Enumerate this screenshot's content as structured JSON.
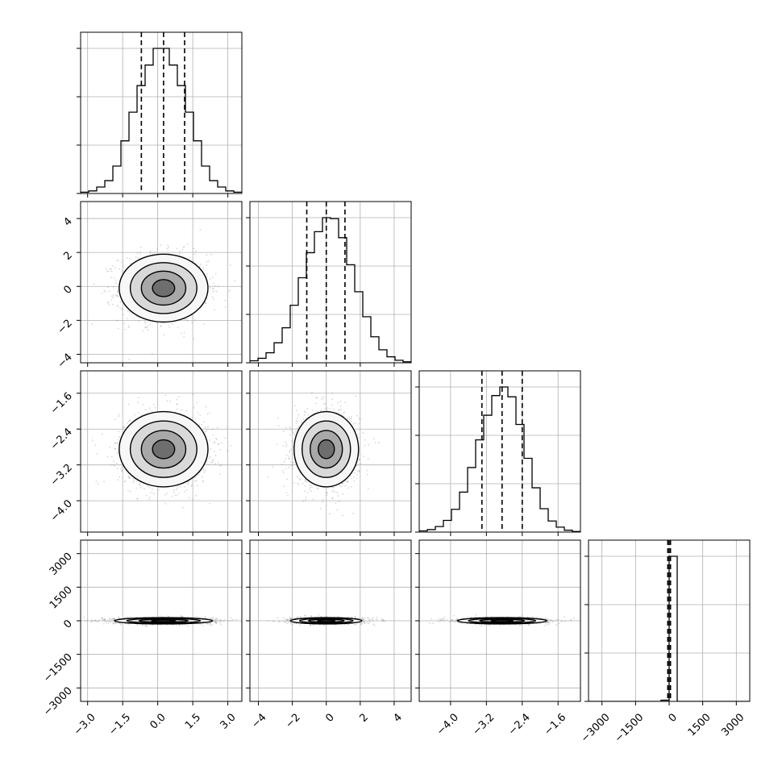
{
  "chart_data": {
    "type": "corner",
    "title": "",
    "n_params": 4,
    "grid": true,
    "params": [
      {
        "name": "",
        "range": [
          -3.3,
          3.6
        ],
        "ticks": [
          "-3.0",
          "-1.5",
          "0.0",
          "1.5",
          "3.0"
        ],
        "tick_values": [
          -3.0,
          -1.5,
          0.0,
          1.5,
          3.0
        ],
        "quantiles": [
          -0.7,
          0.25,
          1.15
        ]
      },
      {
        "name": "",
        "range": [
          -4.5,
          5.0
        ],
        "ticks": [
          "-4",
          "-2",
          "0",
          "2",
          "4"
        ],
        "tick_values": [
          -4,
          -2,
          0,
          2,
          4
        ],
        "quantiles": [
          -1.15,
          0.0,
          1.1
        ]
      },
      {
        "name": "",
        "range": [
          -4.7,
          -1.1
        ],
        "ticks": [
          "-4.0",
          "-3.2",
          "-2.4",
          "-1.6"
        ],
        "tick_values": [
          -4.0,
          -3.2,
          -2.4,
          -1.6
        ],
        "quantiles": [
          -3.3,
          -2.85,
          -2.4
        ]
      },
      {
        "name": "",
        "range": [
          -3600,
          3600
        ],
        "ticks": [
          "-3000",
          "-1500",
          "0",
          "1500",
          "3000"
        ],
        "tick_values": [
          -3000,
          -1500,
          0,
          1500,
          3000
        ],
        "quantiles": [
          -60,
          0,
          60
        ]
      }
    ],
    "histograms": [
      {
        "param": 0,
        "bin_edges": [
          -3.3,
          -2.955,
          -2.61,
          -2.265,
          -1.92,
          -1.575,
          -1.23,
          -0.885,
          -0.54,
          -0.195,
          0.15,
          0.495,
          0.84,
          1.185,
          1.53,
          1.875,
          2.22,
          2.565,
          2.91,
          3.255,
          3.6
        ],
        "counts": [
          3,
          6,
          15,
          30,
          64,
          123,
          190,
          252,
          300,
          339,
          339,
          300,
          252,
          190,
          123,
          64,
          30,
          15,
          6,
          3
        ]
      },
      {
        "param": 1,
        "bin_edges": [
          -4.5,
          -4.025,
          -3.55,
          -3.075,
          -2.6,
          -2.125,
          -1.65,
          -1.175,
          -0.7,
          -0.225,
          0.25,
          0.725,
          1.2,
          1.675,
          2.15,
          2.625,
          3.1,
          3.575,
          4.05,
          4.525,
          5.0
        ],
        "counts": [
          4,
          9,
          20,
          40,
          70,
          115,
          170,
          220,
          262,
          290,
          288,
          250,
          196,
          142,
          92,
          52,
          26,
          12,
          5,
          2
        ]
      },
      {
        "param": 2,
        "bin_edges": [
          -4.7,
          -4.52,
          -4.34,
          -4.16,
          -3.98,
          -3.8,
          -3.62,
          -3.44,
          -3.26,
          -3.08,
          -2.9,
          -2.72,
          -2.54,
          -2.36,
          -2.18,
          -2.0,
          -1.82,
          -1.64,
          -1.46,
          -1.28,
          -1.1
        ],
        "counts": [
          2,
          4,
          9,
          19,
          37,
          65,
          105,
          150,
          190,
          222,
          236,
          220,
          175,
          120,
          72,
          38,
          18,
          8,
          3,
          1
        ]
      },
      {
        "param": 3,
        "bin_edges": [
          -3600,
          -3240,
          -2880,
          -2520,
          -2160,
          -1800,
          -1440,
          -1080,
          -720,
          -360,
          0,
          360,
          720,
          1080,
          1440,
          1800,
          2160,
          2520,
          2880,
          3240,
          3600
        ],
        "counts": [
          0,
          0,
          0,
          0,
          0,
          0,
          0,
          0,
          0,
          8,
          1000,
          0,
          0,
          0,
          0,
          0,
          0,
          0,
          0,
          0
        ]
      }
    ],
    "pairs": [
      {
        "x_param": 0,
        "y_param": 1,
        "center": [
          0.25,
          -0.1
        ],
        "spread": [
          0.95,
          1.0
        ]
      },
      {
        "x_param": 0,
        "y_param": 2,
        "center": [
          0.25,
          -2.85
        ],
        "spread": [
          0.95,
          0.42
        ]
      },
      {
        "x_param": 1,
        "y_param": 2,
        "center": [
          0.0,
          -2.85
        ],
        "spread": [
          0.95,
          0.42
        ]
      },
      {
        "x_param": 0,
        "y_param": 3,
        "center": [
          0.25,
          0
        ],
        "spread": [
          1.05,
          70
        ]
      },
      {
        "x_param": 1,
        "y_param": 3,
        "center": [
          0.0,
          0
        ],
        "spread": [
          1.05,
          70
        ]
      },
      {
        "x_param": 2,
        "y_param": 3,
        "center": [
          -2.85,
          0
        ],
        "spread": [
          0.5,
          70
        ]
      }
    ],
    "contour_levels_sigma": [
      0.5,
      1.0,
      1.5,
      2.0
    ],
    "colors": {
      "ink": "#000000",
      "grid": "#b0b0b0",
      "panel_border": "#000000",
      "scatter": "#8c8c8c"
    }
  }
}
